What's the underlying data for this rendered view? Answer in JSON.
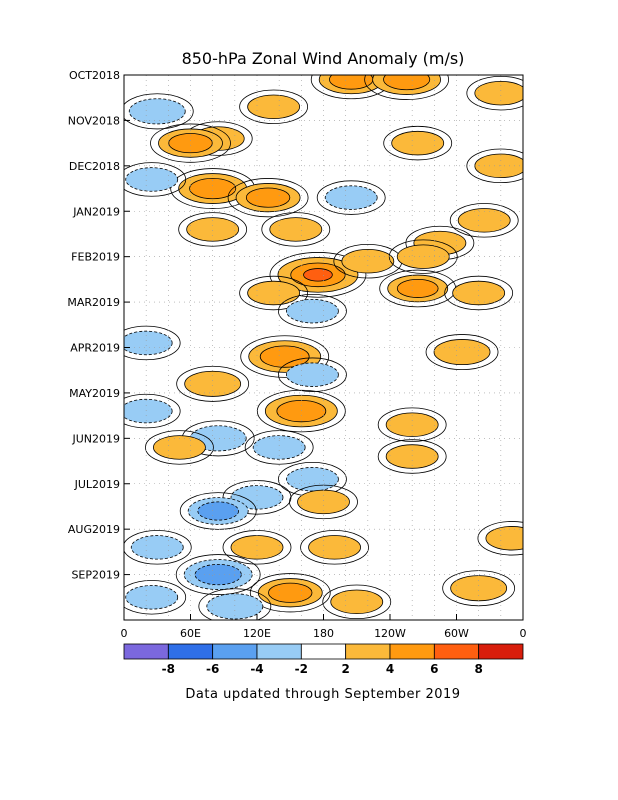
{
  "chart_data": {
    "type": "heatmap",
    "title": "850-hPa Zonal Wind Anomaly (m/s)",
    "xlabel": "",
    "ylabel": "",
    "x_tick_labels": [
      "0",
      "60E",
      "120E",
      "180",
      "120W",
      "60W",
      "0"
    ],
    "x_ticks_deg": [
      0,
      60,
      120,
      180,
      240,
      300,
      360
    ],
    "xlim_deg": [
      0,
      360
    ],
    "y_tick_labels": [
      "OCT2018",
      "NOV2018",
      "DEC2018",
      "JAN2019",
      "FEB2019",
      "MAR2019",
      "APR2019",
      "MAY2019",
      "JUN2019",
      "JUL2019",
      "AUG2019",
      "SEP2019"
    ],
    "ylim_months": [
      0,
      12
    ],
    "y_direction": "time increases downward",
    "grid": true,
    "colorbar": {
      "tick_labels": [
        "-8",
        "-6",
        "-4",
        "-2",
        "2",
        "4",
        "6",
        "8"
      ],
      "bins": [
        {
          "range": "< -8",
          "color": "#7b68de"
        },
        {
          "range": "-8 to -6",
          "color": "#2f6fe8"
        },
        {
          "range": "-6 to -4",
          "color": "#5aa0f0"
        },
        {
          "range": "-4 to -2",
          "color": "#98ccf5"
        },
        {
          "range": "-2 to 2",
          "color": "#ffffff"
        },
        {
          "range": "2 to 4",
          "color": "#fbb93a"
        },
        {
          "range": "4 to 6",
          "color": "#ff9a10"
        },
        {
          "range": "6 to 8",
          "color": "#ff5f10"
        },
        {
          "range": "> 8",
          "color": "#d81e0c"
        }
      ]
    },
    "anomaly_features": [
      {
        "lon": 205,
        "month": 0.1,
        "value": 4.5
      },
      {
        "lon": 255,
        "month": 0.1,
        "value": 5
      },
      {
        "lon": 340,
        "month": 0.4,
        "value": 3
      },
      {
        "lon": 30,
        "month": 0.8,
        "value": -3.5
      },
      {
        "lon": 135,
        "month": 0.7,
        "value": 3
      },
      {
        "lon": 85,
        "month": 1.4,
        "value": 3
      },
      {
        "lon": 60,
        "month": 1.5,
        "value": 4.5
      },
      {
        "lon": 265,
        "month": 1.5,
        "value": 3
      },
      {
        "lon": 340,
        "month": 2.0,
        "value": 3
      },
      {
        "lon": 80,
        "month": 2.5,
        "value": 5
      },
      {
        "lon": 130,
        "month": 2.7,
        "value": 4.5
      },
      {
        "lon": 205,
        "month": 2.7,
        "value": -3
      },
      {
        "lon": 25,
        "month": 2.3,
        "value": -3
      },
      {
        "lon": 80,
        "month": 3.4,
        "value": 3
      },
      {
        "lon": 155,
        "month": 3.4,
        "value": 3
      },
      {
        "lon": 325,
        "month": 3.2,
        "value": 3
      },
      {
        "lon": 285,
        "month": 3.7,
        "value": 3
      },
      {
        "lon": 175,
        "month": 4.4,
        "value": 6.5
      },
      {
        "lon": 220,
        "month": 4.1,
        "value": 3
      },
      {
        "lon": 270,
        "month": 4.0,
        "value": 3
      },
      {
        "lon": 265,
        "month": 4.7,
        "value": 4
      },
      {
        "lon": 135,
        "month": 4.8,
        "value": 3
      },
      {
        "lon": 320,
        "month": 4.8,
        "value": 3
      },
      {
        "lon": 170,
        "month": 5.2,
        "value": -3
      },
      {
        "lon": 20,
        "month": 5.9,
        "value": -3
      },
      {
        "lon": 145,
        "month": 6.2,
        "value": 5.5
      },
      {
        "lon": 305,
        "month": 6.1,
        "value": 3.5
      },
      {
        "lon": 170,
        "month": 6.6,
        "value": -3
      },
      {
        "lon": 80,
        "month": 6.8,
        "value": 3.5
      },
      {
        "lon": 160,
        "month": 7.4,
        "value": 5.5
      },
      {
        "lon": 20,
        "month": 7.4,
        "value": -3
      },
      {
        "lon": 260,
        "month": 7.7,
        "value": 3
      },
      {
        "lon": 85,
        "month": 8.0,
        "value": -3.5
      },
      {
        "lon": 50,
        "month": 8.2,
        "value": 3
      },
      {
        "lon": 140,
        "month": 8.2,
        "value": -3
      },
      {
        "lon": 260,
        "month": 8.4,
        "value": 3
      },
      {
        "lon": 170,
        "month": 8.9,
        "value": -3
      },
      {
        "lon": 180,
        "month": 9.4,
        "value": 3
      },
      {
        "lon": 120,
        "month": 9.3,
        "value": -3
      },
      {
        "lon": 85,
        "month": 9.6,
        "value": -4
      },
      {
        "lon": 190,
        "month": 10.4,
        "value": 3
      },
      {
        "lon": 30,
        "month": 10.4,
        "value": -3
      },
      {
        "lon": 120,
        "month": 10.4,
        "value": 3
      },
      {
        "lon": 350,
        "month": 10.2,
        "value": 3
      },
      {
        "lon": 85,
        "month": 11.0,
        "value": -5
      },
      {
        "lon": 150,
        "month": 11.4,
        "value": 4.5
      },
      {
        "lon": 210,
        "month": 11.6,
        "value": 3
      },
      {
        "lon": 320,
        "month": 11.3,
        "value": 3.5
      },
      {
        "lon": 25,
        "month": 11.5,
        "value": -3
      },
      {
        "lon": 100,
        "month": 11.7,
        "value": -3.5
      }
    ]
  },
  "footer_text": "Data updated through September 2019"
}
